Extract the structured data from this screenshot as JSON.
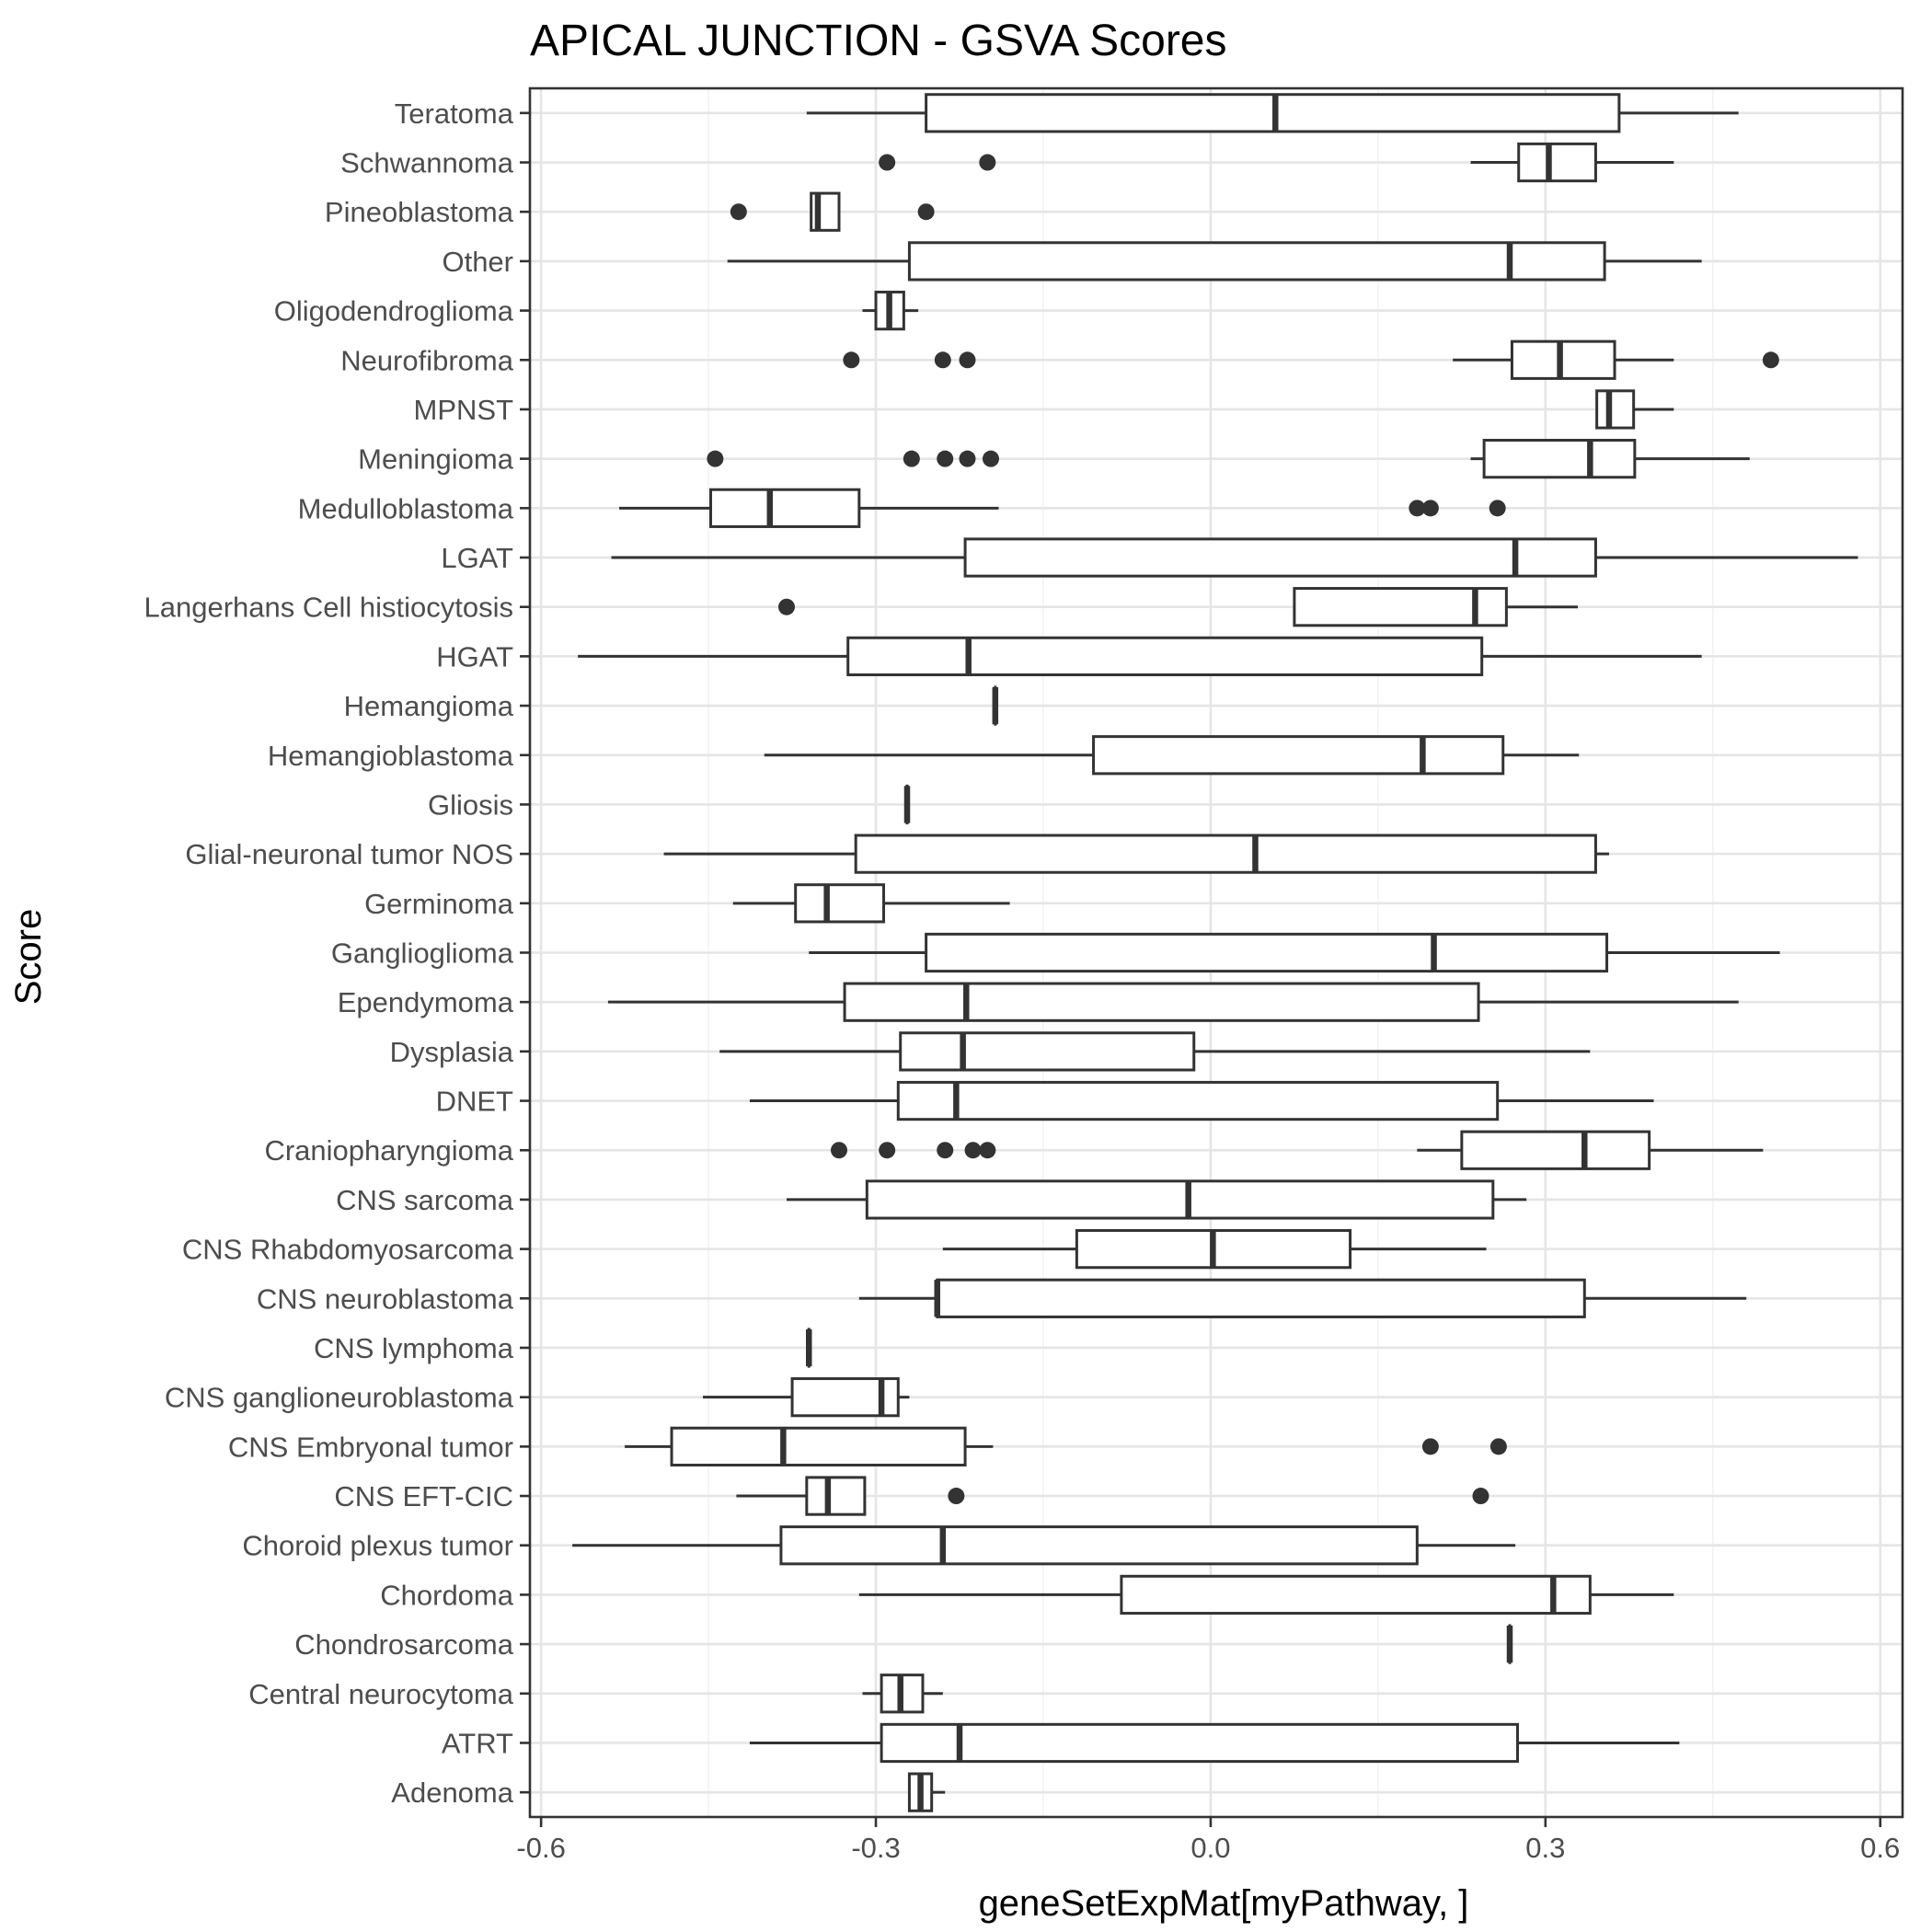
{
  "chart_data": {
    "type": "boxplot",
    "orientation": "horizontal",
    "title": "APICAL JUNCTION - GSVA Scores",
    "xlabel": "geneSetExpMat[myPathway, ]",
    "ylabel": "Score",
    "xlim": [
      -0.61,
      0.62
    ],
    "xticks": [
      -0.6,
      -0.3,
      0.0,
      0.3,
      0.6
    ],
    "xtick_labels": [
      "-0.6",
      "-0.3",
      "0.0",
      "0.3",
      "0.6"
    ],
    "grid": true,
    "series": [
      {
        "category": "Teratoma",
        "min": -0.362,
        "q1": -0.255,
        "median": 0.058,
        "q3": 0.366,
        "max": 0.473,
        "outliers": []
      },
      {
        "category": "Schwannoma",
        "min": 0.233,
        "q1": 0.276,
        "median": 0.303,
        "q3": 0.345,
        "max": 0.415,
        "outliers": [
          -0.29,
          -0.2
        ]
      },
      {
        "category": "Pineoblastoma",
        "min": -0.358,
        "q1": -0.358,
        "median": -0.352,
        "q3": -0.333,
        "max": -0.333,
        "outliers": [
          -0.423,
          -0.255
        ]
      },
      {
        "category": "Other",
        "min": -0.433,
        "q1": -0.27,
        "median": 0.268,
        "q3": 0.353,
        "max": 0.44,
        "outliers": []
      },
      {
        "category": "Oligodendroglioma",
        "min": -0.312,
        "q1": -0.3,
        "median": -0.288,
        "q3": -0.275,
        "max": -0.262,
        "outliers": []
      },
      {
        "category": "Neurofibroma",
        "min": 0.217,
        "q1": 0.27,
        "median": 0.313,
        "q3": 0.362,
        "max": 0.415,
        "outliers": [
          -0.322,
          -0.24,
          -0.218,
          0.502
        ]
      },
      {
        "category": "MPNST",
        "min": 0.346,
        "q1": 0.346,
        "median": 0.357,
        "q3": 0.379,
        "max": 0.415,
        "outliers": []
      },
      {
        "category": "Meningioma",
        "min": 0.233,
        "q1": 0.245,
        "median": 0.34,
        "q3": 0.38,
        "max": 0.483,
        "outliers": [
          -0.444,
          -0.268,
          -0.238,
          -0.218,
          -0.197
        ]
      },
      {
        "category": "Medulloblastoma",
        "min": -0.53,
        "q1": -0.448,
        "median": -0.395,
        "q3": -0.315,
        "max": -0.19,
        "outliers": [
          0.185,
          0.197,
          0.257
        ]
      },
      {
        "category": "LGAT",
        "min": -0.537,
        "q1": -0.22,
        "median": 0.273,
        "q3": 0.345,
        "max": 0.58,
        "outliers": []
      },
      {
        "category": "Langerhans Cell histiocytosis",
        "min": 0.075,
        "q1": 0.075,
        "median": 0.237,
        "q3": 0.265,
        "max": 0.329,
        "outliers": [
          -0.38
        ]
      },
      {
        "category": "HGAT",
        "min": -0.567,
        "q1": -0.325,
        "median": -0.217,
        "q3": 0.243,
        "max": 0.44,
        "outliers": []
      },
      {
        "category": "Hemangioma",
        "min": -0.193,
        "q1": -0.193,
        "median": -0.193,
        "q3": -0.193,
        "max": -0.193,
        "outliers": []
      },
      {
        "category": "Hemangioblastoma",
        "min": -0.4,
        "q1": -0.105,
        "median": 0.19,
        "q3": 0.262,
        "max": 0.33,
        "outliers": []
      },
      {
        "category": "Gliosis",
        "min": -0.272,
        "q1": -0.272,
        "median": -0.272,
        "q3": -0.272,
        "max": -0.272,
        "outliers": []
      },
      {
        "category": "Glial-neuronal tumor NOS",
        "min": -0.49,
        "q1": -0.318,
        "median": 0.04,
        "q3": 0.345,
        "max": 0.357,
        "outliers": []
      },
      {
        "category": "Germinoma",
        "min": -0.428,
        "q1": -0.372,
        "median": -0.344,
        "q3": -0.293,
        "max": -0.18,
        "outliers": []
      },
      {
        "category": "Ganglioglioma",
        "min": -0.36,
        "q1": -0.255,
        "median": 0.2,
        "q3": 0.355,
        "max": 0.51,
        "outliers": []
      },
      {
        "category": "Ependymoma",
        "min": -0.54,
        "q1": -0.328,
        "median": -0.219,
        "q3": 0.24,
        "max": 0.473,
        "outliers": []
      },
      {
        "category": "Dysplasia",
        "min": -0.44,
        "q1": -0.278,
        "median": -0.222,
        "q3": -0.015,
        "max": 0.34,
        "outliers": []
      },
      {
        "category": "DNET",
        "min": -0.413,
        "q1": -0.28,
        "median": -0.228,
        "q3": 0.257,
        "max": 0.397,
        "outliers": []
      },
      {
        "category": "Craniopharyngioma",
        "min": 0.185,
        "q1": 0.225,
        "median": 0.335,
        "q3": 0.393,
        "max": 0.495,
        "outliers": [
          -0.333,
          -0.29,
          -0.238,
          -0.213,
          -0.2
        ]
      },
      {
        "category": "CNS sarcoma",
        "min": -0.38,
        "q1": -0.308,
        "median": -0.02,
        "q3": 0.253,
        "max": 0.283,
        "outliers": []
      },
      {
        "category": "CNS Rhabdomyosarcoma",
        "min": -0.24,
        "q1": -0.12,
        "median": 0.002,
        "q3": 0.125,
        "max": 0.247,
        "outliers": []
      },
      {
        "category": "CNS neuroblastoma",
        "min": -0.315,
        "q1": -0.245,
        "median": -0.245,
        "q3": 0.335,
        "max": 0.48,
        "outliers": []
      },
      {
        "category": "CNS lymphoma",
        "min": -0.36,
        "q1": -0.36,
        "median": -0.36,
        "q3": -0.36,
        "max": -0.36,
        "outliers": []
      },
      {
        "category": "CNS ganglioneuroblastoma",
        "min": -0.455,
        "q1": -0.375,
        "median": -0.295,
        "q3": -0.28,
        "max": -0.27,
        "outliers": []
      },
      {
        "category": "CNS Embryonal tumor",
        "min": -0.525,
        "q1": -0.483,
        "median": -0.383,
        "q3": -0.22,
        "max": -0.195,
        "outliers": [
          0.197,
          0.258
        ]
      },
      {
        "category": "CNS EFT-CIC",
        "min": -0.425,
        "q1": -0.362,
        "median": -0.343,
        "q3": -0.31,
        "max": -0.31,
        "outliers": [
          -0.228,
          0.242
        ]
      },
      {
        "category": "Choroid plexus tumor",
        "min": -0.572,
        "q1": -0.385,
        "median": -0.24,
        "q3": 0.185,
        "max": 0.273,
        "outliers": []
      },
      {
        "category": "Chordoma",
        "min": -0.315,
        "q1": -0.08,
        "median": 0.307,
        "q3": 0.34,
        "max": 0.415,
        "outliers": []
      },
      {
        "category": "Chondrosarcoma",
        "min": 0.268,
        "q1": 0.268,
        "median": 0.268,
        "q3": 0.268,
        "max": 0.268,
        "outliers": []
      },
      {
        "category": "Central neurocytoma",
        "min": -0.312,
        "q1": -0.295,
        "median": -0.278,
        "q3": -0.258,
        "max": -0.24,
        "outliers": []
      },
      {
        "category": "ATRT",
        "min": -0.413,
        "q1": -0.295,
        "median": -0.225,
        "q3": 0.275,
        "max": 0.42,
        "outliers": []
      },
      {
        "category": "Adenoma",
        "min": -0.27,
        "q1": -0.27,
        "median": -0.26,
        "q3": -0.25,
        "max": -0.238,
        "outliers": []
      }
    ]
  }
}
